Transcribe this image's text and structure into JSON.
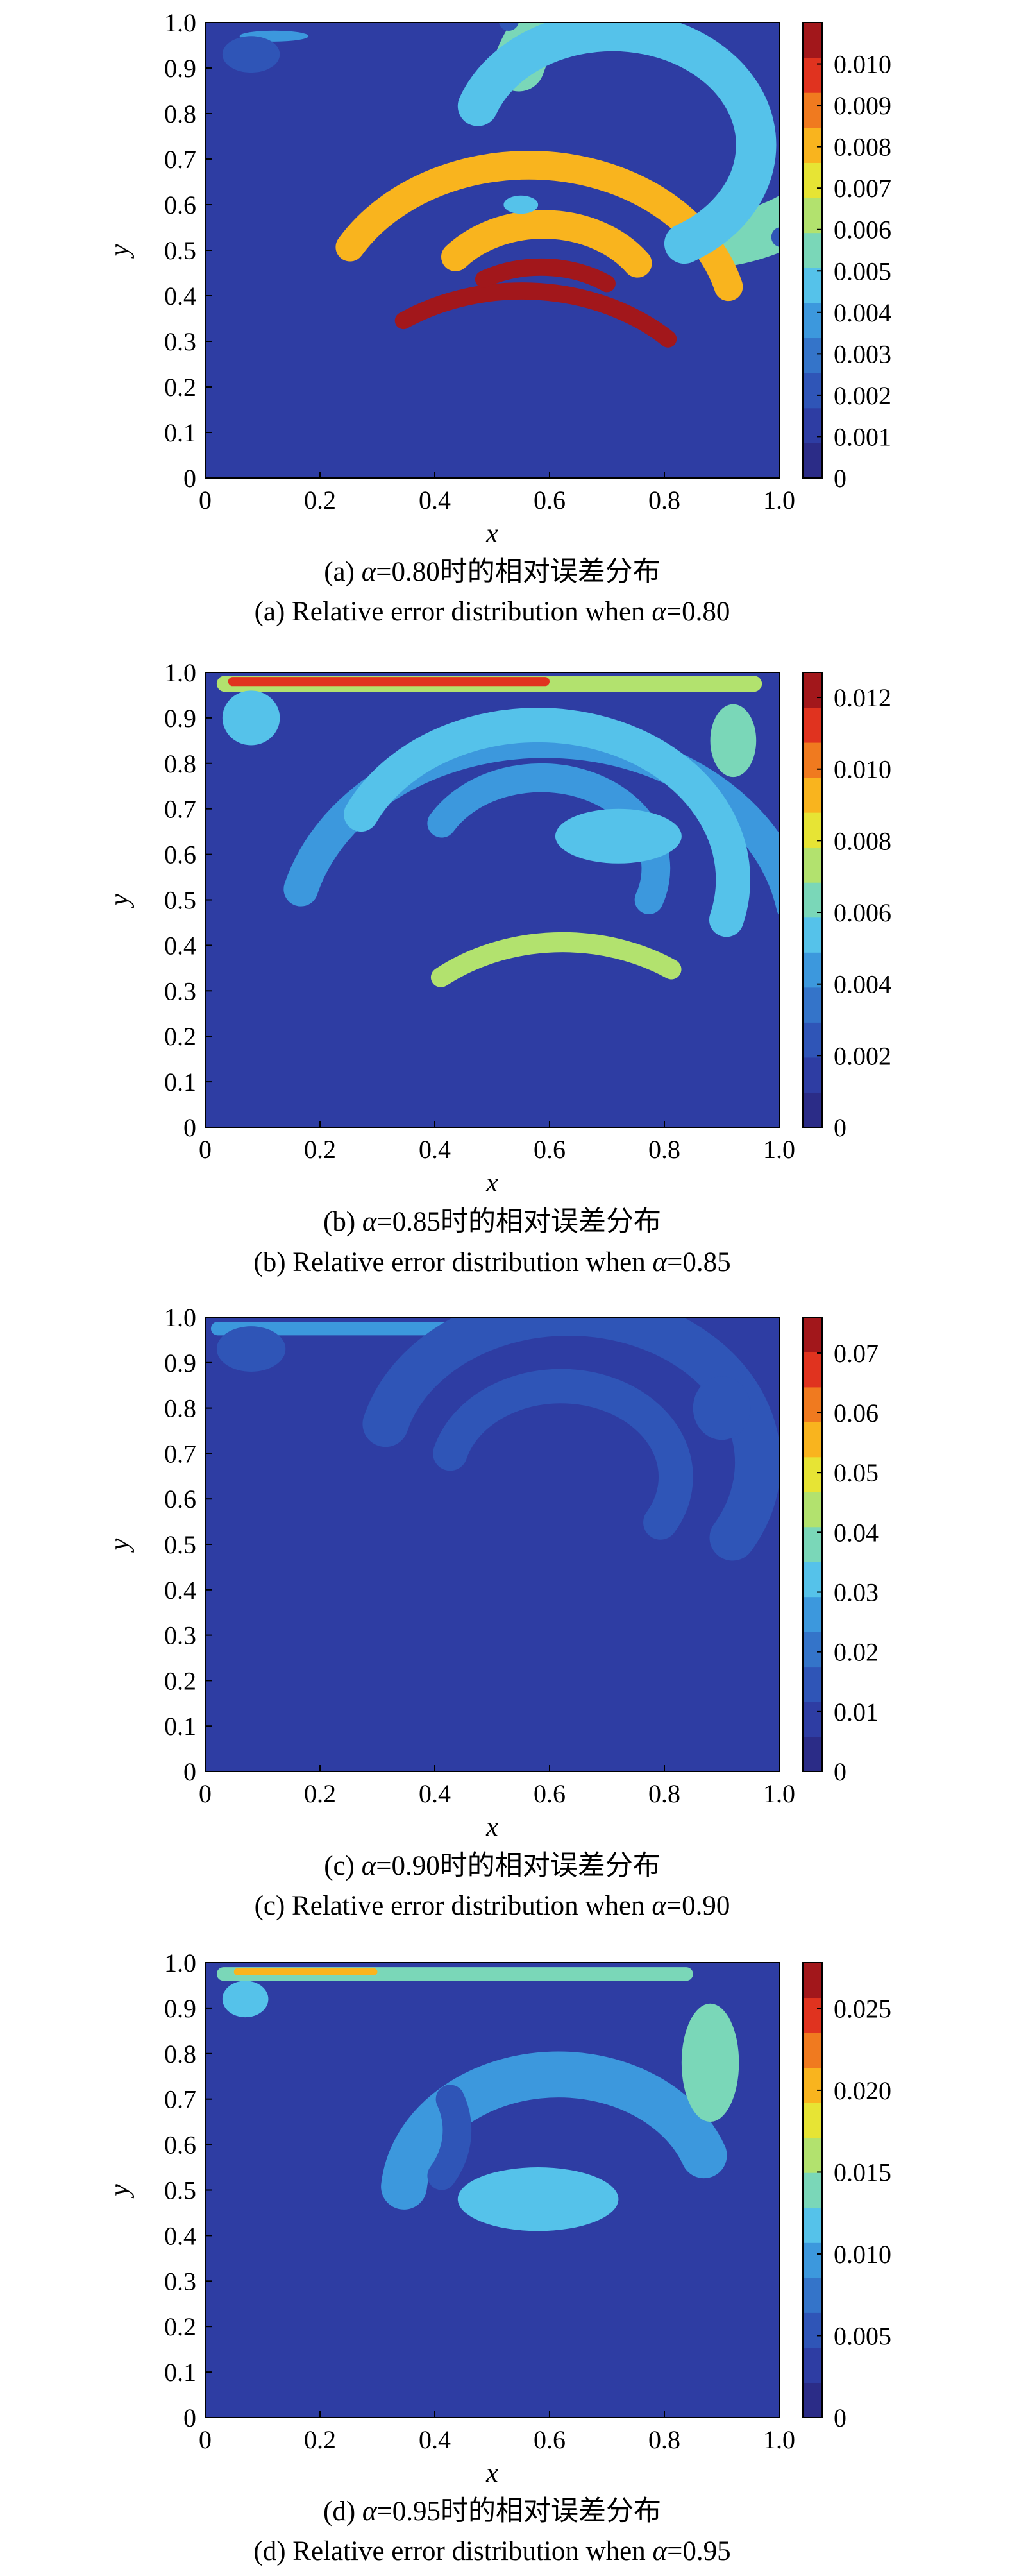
{
  "palette": [
    "#2b2c87",
    "#2e3da3",
    "#2f55b7",
    "#3474c9",
    "#3c98dd",
    "#55c2ea",
    "#7ad7b8",
    "#b2e26e",
    "#e7e434",
    "#f9b41e",
    "#f07a1f",
    "#e0331f",
    "#a2171b"
  ],
  "chart_data": [
    {
      "type": "heatmap",
      "panel": "a",
      "xlabel": "x",
      "ylabel": "y",
      "xlim": [
        0,
        1
      ],
      "ylim": [
        0,
        1
      ],
      "xticks": [
        "0",
        "0.2",
        "0.4",
        "0.6",
        "0.8",
        "1.0"
      ],
      "yticks": [
        "0",
        "0.1",
        "0.2",
        "0.3",
        "0.4",
        "0.5",
        "0.6",
        "0.7",
        "0.8",
        "0.9",
        "1.0"
      ],
      "colorbar": {
        "min": 0,
        "max": 0.011,
        "ticks": [
          "0",
          "0.001",
          "0.002",
          "0.003",
          "0.004",
          "0.005",
          "0.006",
          "0.007",
          "0.008",
          "0.009",
          "0.010"
        ]
      },
      "caption_cn_prefix": "(a) ",
      "caption_cn_alpha": "α",
      "caption_cn_rest": "=0.80时的相对误差分布",
      "caption_en_prefix": "(a) Relative error distribution when ",
      "caption_en_alpha": "α",
      "caption_en_rest": "=0.80",
      "features": [
        {
          "shape": "arc",
          "cx": 0.6,
          "cy": 0.6,
          "r": 0.31,
          "a0": 100,
          "a1": 345,
          "w": 0.09,
          "val": 0.0056
        },
        {
          "shape": "arc",
          "cx": 0.6,
          "cy": 0.6,
          "r": 0.36,
          "a0": 195,
          "a1": 330,
          "w": 0.05,
          "val": 0.0082
        },
        {
          "shape": "arc",
          "cx": 0.6,
          "cy": 0.6,
          "r": 0.36,
          "a0": 225,
          "a1": 305,
          "w": 0.03,
          "val": 0.0104
        },
        {
          "shape": "arc",
          "cx": 0.6,
          "cy": 0.6,
          "r": 0.25,
          "a0": 120,
          "a1": 340,
          "w": 0.07,
          "val": 0.0045
        },
        {
          "shape": "arc",
          "cx": 0.6,
          "cy": 0.6,
          "r": 0.2,
          "a0": 215,
          "a1": 320,
          "w": 0.05,
          "val": 0.0078
        },
        {
          "shape": "arc",
          "cx": 0.6,
          "cy": 0.6,
          "r": 0.2,
          "a0": 235,
          "a1": 300,
          "w": 0.03,
          "val": 0.0103
        },
        {
          "shape": "arc",
          "cx": 0.6,
          "cy": 0.6,
          "r": 0.41,
          "a0": 100,
          "a1": 350,
          "w": 0.035,
          "val": 0.0025
        },
        {
          "shape": "blob",
          "x": 0.55,
          "y": 0.6,
          "rx": 0.03,
          "ry": 0.02,
          "val": 0.0045
        },
        {
          "shape": "blob",
          "x": 0.12,
          "y": 0.97,
          "rx": 0.06,
          "ry": 0.012,
          "val": 0.004
        },
        {
          "shape": "blob",
          "x": 0.08,
          "y": 0.93,
          "rx": 0.05,
          "ry": 0.04,
          "val": 0.0022
        }
      ]
    },
    {
      "type": "heatmap",
      "panel": "b",
      "xlabel": "x",
      "ylabel": "y",
      "xlim": [
        0,
        1
      ],
      "ylim": [
        0,
        1
      ],
      "xticks": [
        "0",
        "0.2",
        "0.4",
        "0.6",
        "0.8",
        "1.0"
      ],
      "yticks": [
        "0",
        "0.1",
        "0.2",
        "0.3",
        "0.4",
        "0.5",
        "0.6",
        "0.7",
        "0.8",
        "0.9",
        "1.0"
      ],
      "colorbar": {
        "min": 0,
        "max": 0.0127,
        "ticks": [
          "0",
          "0.002",
          "0.004",
          "0.006",
          "0.008",
          "0.010",
          "0.012"
        ]
      },
      "caption_cn_prefix": "(b) ",
      "caption_cn_alpha": "α",
      "caption_cn_rest": "=0.85时的相对误差分布",
      "caption_en_prefix": "(b) Relative error distribution when ",
      "caption_en_alpha": "α",
      "caption_en_rest": "=0.85",
      "features": [
        {
          "shape": "band",
          "x0": 0.02,
          "x1": 0.97,
          "y": 0.975,
          "h": 0.035,
          "val": 0.0075
        },
        {
          "shape": "band",
          "x0": 0.04,
          "x1": 0.6,
          "y": 0.98,
          "h": 0.02,
          "val": 0.011
        },
        {
          "shape": "arc",
          "cx": 0.6,
          "cy": 0.6,
          "r": 0.44,
          "a0": 190,
          "a1": 345,
          "w": 0.06,
          "val": 0.0045
        },
        {
          "shape": "arc",
          "cx": 0.6,
          "cy": 0.6,
          "r": 0.34,
          "a0": 165,
          "a1": 335,
          "w": 0.06,
          "val": 0.0058
        },
        {
          "shape": "arc",
          "cx": 0.6,
          "cy": 0.6,
          "r": 0.33,
          "a0": 235,
          "a1": 310,
          "w": 0.035,
          "val": 0.0078
        },
        {
          "shape": "arc",
          "cx": 0.6,
          "cy": 0.6,
          "r": 0.2,
          "a0": 160,
          "a1": 330,
          "w": 0.05,
          "val": 0.0048
        },
        {
          "shape": "blob",
          "x": 0.72,
          "y": 0.64,
          "rx": 0.11,
          "ry": 0.06,
          "val": 0.0052
        },
        {
          "shape": "blob",
          "x": 0.08,
          "y": 0.9,
          "rx": 0.05,
          "ry": 0.06,
          "val": 0.0055
        },
        {
          "shape": "blob",
          "x": 0.92,
          "y": 0.85,
          "rx": 0.04,
          "ry": 0.08,
          "val": 0.0068
        }
      ]
    },
    {
      "type": "heatmap",
      "panel": "c",
      "xlabel": "x",
      "ylabel": "y",
      "xlim": [
        0,
        1
      ],
      "ylim": [
        0,
        1
      ],
      "xticks": [
        "0",
        "0.2",
        "0.4",
        "0.6",
        "0.8",
        "1.0"
      ],
      "yticks": [
        "0",
        "0.1",
        "0.2",
        "0.3",
        "0.4",
        "0.5",
        "0.6",
        "0.7",
        "0.8",
        "0.9",
        "1.0"
      ],
      "colorbar": {
        "min": 0,
        "max": 0.076,
        "ticks": [
          "0",
          "0.01",
          "0.02",
          "0.03",
          "0.04",
          "0.05",
          "0.06",
          "0.07"
        ]
      },
      "caption_cn_prefix": "(c) ",
      "caption_cn_alpha": "α",
      "caption_cn_rest": "=0.90时的相对误差分布",
      "caption_en_prefix": "(c) Relative error distribution when ",
      "caption_en_alpha": "α",
      "caption_en_rest": "=0.90",
      "features": [
        {
          "shape": "band",
          "x0": 0.01,
          "x1": 0.6,
          "y": 0.975,
          "h": 0.03,
          "val": 0.024
        },
        {
          "shape": "arc",
          "cx": 0.6,
          "cy": 0.6,
          "r": 0.33,
          "a0": 150,
          "a1": 345,
          "w": 0.08,
          "val": 0.0145
        },
        {
          "shape": "arc",
          "cx": 0.6,
          "cy": 0.6,
          "r": 0.2,
          "a0": 150,
          "a1": 345,
          "w": 0.06,
          "val": 0.013
        },
        {
          "shape": "blob",
          "x": 0.9,
          "y": 0.8,
          "rx": 0.05,
          "ry": 0.07,
          "val": 0.015
        },
        {
          "shape": "blob",
          "x": 0.08,
          "y": 0.93,
          "rx": 0.06,
          "ry": 0.05,
          "val": 0.015
        }
      ]
    },
    {
      "type": "heatmap",
      "panel": "d",
      "xlabel": "x",
      "ylabel": "y",
      "xlim": [
        0,
        1
      ],
      "ylim": [
        0,
        1
      ],
      "xticks": [
        "0",
        "0.2",
        "0.4",
        "0.6",
        "0.8",
        "1.0"
      ],
      "yticks": [
        "0",
        "0.1",
        "0.2",
        "0.3",
        "0.4",
        "0.5",
        "0.6",
        "0.7",
        "0.8",
        "0.9",
        "1.0"
      ],
      "colorbar": {
        "min": 0,
        "max": 0.0278,
        "ticks": [
          "0",
          "0.005",
          "0.010",
          "0.015",
          "0.020",
          "0.025"
        ]
      },
      "caption_cn_prefix": "(d) ",
      "caption_cn_alpha": "α",
      "caption_cn_rest": "=0.95时的相对误差分布",
      "caption_en_prefix": "(d) Relative error distribution when ",
      "caption_en_alpha": "α",
      "caption_en_rest": "=0.95",
      "features": [
        {
          "shape": "band",
          "x0": 0.02,
          "x1": 0.85,
          "y": 0.975,
          "h": 0.03,
          "val": 0.014
        },
        {
          "shape": "band",
          "x0": 0.05,
          "x1": 0.3,
          "y": 0.98,
          "h": 0.015,
          "val": 0.02
        },
        {
          "shape": "arc",
          "cx": 0.6,
          "cy": 0.6,
          "r": 0.27,
          "a0": 200,
          "a1": 355,
          "w": 0.08,
          "val": 0.0105
        },
        {
          "shape": "blob",
          "x": 0.58,
          "y": 0.48,
          "rx": 0.14,
          "ry": 0.07,
          "val": 0.0115
        },
        {
          "shape": "blob",
          "x": 0.88,
          "y": 0.78,
          "rx": 0.05,
          "ry": 0.13,
          "val": 0.0145
        },
        {
          "shape": "blob",
          "x": 0.07,
          "y": 0.92,
          "rx": 0.04,
          "ry": 0.04,
          "val": 0.0115
        },
        {
          "shape": "arc",
          "cx": 0.6,
          "cy": 0.6,
          "r": 0.2,
          "a0": 150,
          "a1": 200,
          "w": 0.05,
          "val": 0.006
        }
      ]
    }
  ]
}
